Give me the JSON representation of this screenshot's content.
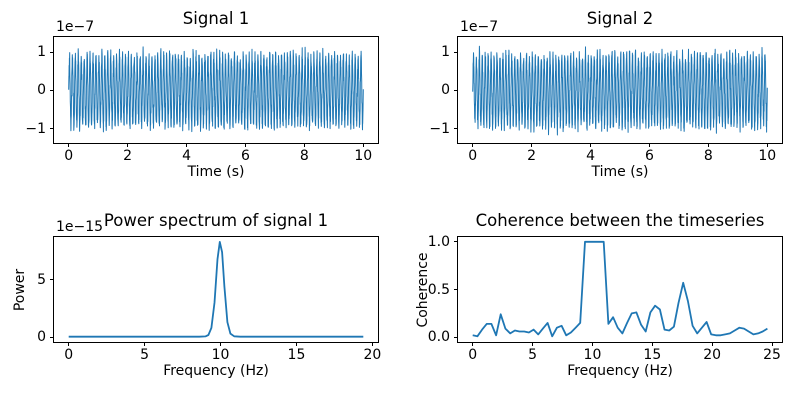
{
  "figure": {
    "background": "#ffffff",
    "line_color": "#1f77b4",
    "text_color": "#000000",
    "axes_edge_color": "#000000"
  },
  "chart_data": [
    {
      "type": "line",
      "title": "Signal 1",
      "xlabel": "Time (s)",
      "ylabel": "",
      "y_offset": "1e−7",
      "xlim": [
        -0.5,
        10.5
      ],
      "ylim": [
        -1.38,
        1.4
      ],
      "grid": false,
      "xticks": {
        "values": [
          0,
          2,
          4,
          6,
          8,
          10
        ],
        "labels": [
          "0",
          "2",
          "4",
          "6",
          "8",
          "10"
        ]
      },
      "yticks": {
        "values": [
          -1,
          0,
          1
        ],
        "labels": [
          "−1",
          "0",
          "1"
        ]
      },
      "series": {
        "kind": "noisy_sine",
        "description": "10 Hz sine plus broadband noise, 0-10 s, amplitude in units of 1e-7",
        "unit": "1e-7",
        "freq_hz": 10,
        "duration_s": 10,
        "n": 2200,
        "sine_amp": 0.9,
        "noise_amp": 0.18,
        "seed": 101,
        "approx_max": 1.25,
        "approx_min": -1.18
      }
    },
    {
      "type": "line",
      "title": "Signal 2",
      "xlabel": "Time (s)",
      "ylabel": "",
      "y_offset": "1e−7",
      "xlim": [
        -0.5,
        10.5
      ],
      "ylim": [
        -1.38,
        1.4
      ],
      "grid": false,
      "xticks": {
        "values": [
          0,
          2,
          4,
          6,
          8,
          10
        ],
        "labels": [
          "0",
          "2",
          "4",
          "6",
          "8",
          "10"
        ]
      },
      "yticks": {
        "values": [
          -1,
          0,
          1
        ],
        "labels": [
          "−1",
          "0",
          "1"
        ]
      },
      "series": {
        "kind": "noisy_sine",
        "description": "10 Hz sine plus broadband noise, 0-10 s, amplitude in units of 1e-7",
        "unit": "1e-7",
        "freq_hz": 10,
        "duration_s": 10,
        "n": 2200,
        "sine_amp": 0.9,
        "noise_amp": 0.18,
        "seed": 202,
        "approx_max": 1.3,
        "approx_min": -1.15
      }
    },
    {
      "type": "line",
      "title": "Power spectrum of signal 1",
      "xlabel": "Frequency (Hz)",
      "ylabel": "Power",
      "y_offset": "1e−15",
      "xlim": [
        -0.97,
        20.37
      ],
      "ylim": [
        -0.43,
        8.73
      ],
      "grid": false,
      "xticks": {
        "values": [
          0,
          5,
          10,
          15,
          20
        ],
        "labels": [
          "0",
          "5",
          "10",
          "15",
          "20"
        ]
      },
      "yticks": {
        "values": [
          0,
          5
        ],
        "labels": [
          "0",
          "5"
        ]
      },
      "series": {
        "kind": "points",
        "unit": "1e-15",
        "peak_freq_hz": 10,
        "peak_value": 8.3,
        "x": [
          0,
          8.6,
          9.0,
          9.2,
          9.4,
          9.6,
          9.8,
          9.95,
          10.1,
          10.25,
          10.45,
          10.65,
          10.9,
          11.3,
          19.4
        ],
        "y": [
          0.03,
          0.03,
          0.06,
          0.18,
          0.8,
          3.0,
          6.8,
          8.3,
          7.4,
          4.4,
          1.3,
          0.3,
          0.07,
          0.03,
          0.03
        ]
      }
    },
    {
      "type": "line",
      "title": "Coherence between the timeseries",
      "xlabel": "Frequency (Hz)",
      "ylabel": "Coherence",
      "y_offset": "",
      "xlim": [
        -1.23,
        25.83
      ],
      "ylim": [
        -0.05,
        1.05
      ],
      "grid": false,
      "xticks": {
        "values": [
          0,
          5,
          10,
          15,
          20,
          25
        ],
        "labels": [
          "0",
          "5",
          "10",
          "15",
          "20",
          "25"
        ]
      },
      "yticks": {
        "values": [
          0,
          0.5,
          1
        ],
        "labels": [
          "0.0",
          "0.5",
          "1.0"
        ]
      },
      "series": {
        "kind": "points",
        "unit": "coherence",
        "plateau_freq_range_hz": [
          9.4,
          10.9
        ],
        "plateau_value": 1.0,
        "x": [
          0,
          0.39,
          0.78,
          1.17,
          1.56,
          1.95,
          2.34,
          2.73,
          3.13,
          3.52,
          3.91,
          4.3,
          4.69,
          5.08,
          5.47,
          5.86,
          6.25,
          6.64,
          7.03,
          7.42,
          7.81,
          8.2,
          8.59,
          8.98,
          9.38,
          9.77,
          10.16,
          10.55,
          10.94,
          11.33,
          11.72,
          12.11,
          12.5,
          12.89,
          13.28,
          13.67,
          14.06,
          14.45,
          14.84,
          15.23,
          15.63,
          16.02,
          16.41,
          16.8,
          17.19,
          17.58,
          17.97,
          18.36,
          18.75,
          19.14,
          19.53,
          19.92,
          20.31,
          20.7,
          21.09,
          21.48,
          21.88,
          22.27,
          22.66,
          23.05,
          23.44,
          23.83,
          24.22,
          24.61
        ],
        "y": [
          0.02,
          0.01,
          0.08,
          0.14,
          0.14,
          0.02,
          0.24,
          0.09,
          0.04,
          0.07,
          0.06,
          0.06,
          0.05,
          0.08,
          0.03,
          0.09,
          0.15,
          0.01,
          0.1,
          0.12,
          0.02,
          0.05,
          0.1,
          0.15,
          1.0,
          1.0,
          1.0,
          1.0,
          1.0,
          0.14,
          0.21,
          0.1,
          0.04,
          0.15,
          0.25,
          0.26,
          0.13,
          0.06,
          0.26,
          0.33,
          0.29,
          0.08,
          0.07,
          0.11,
          0.36,
          0.57,
          0.38,
          0.12,
          0.04,
          0.1,
          0.16,
          0.03,
          0.02,
          0.02,
          0.03,
          0.04,
          0.07,
          0.1,
          0.09,
          0.06,
          0.03,
          0.04,
          0.06,
          0.09
        ]
      }
    }
  ]
}
